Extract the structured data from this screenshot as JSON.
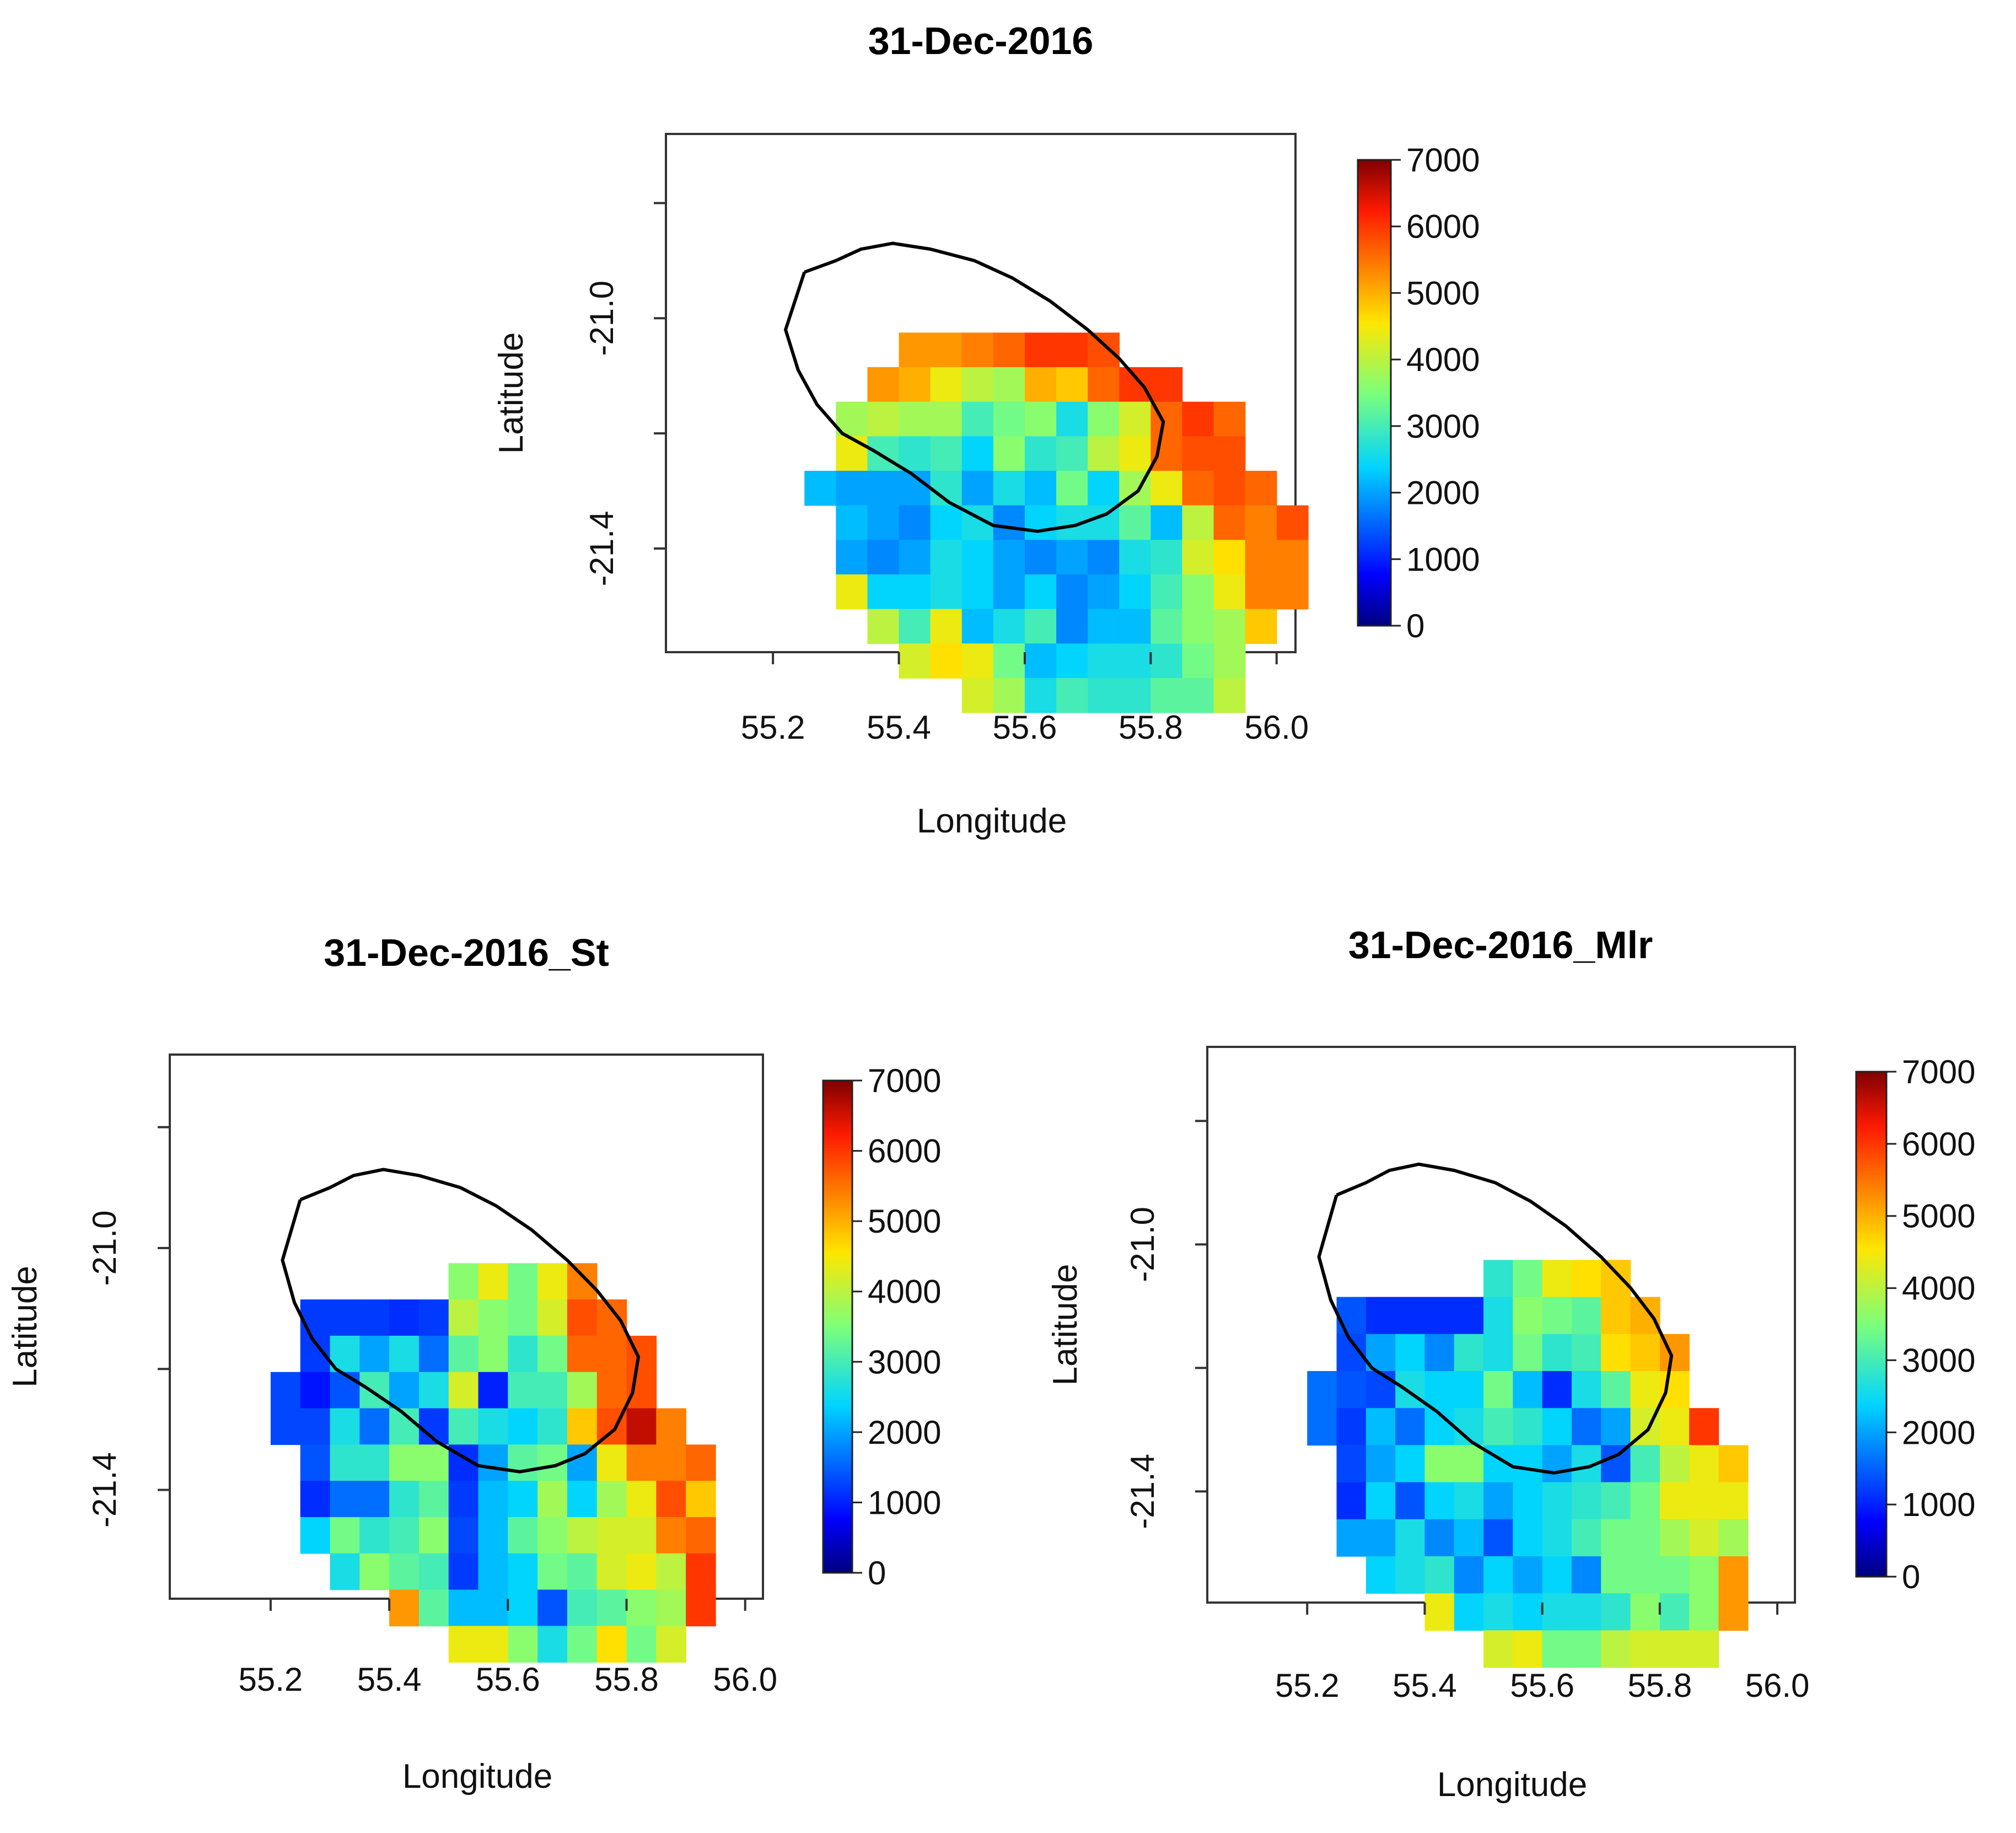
{
  "figure": {
    "description_free": true
  },
  "chart_data": [
    {
      "type": "heatmap",
      "title": "31-Dec-2016",
      "xlabel": "Longitude",
      "ylabel": "Latitude",
      "xlim": [
        55.03,
        56.03
      ],
      "ylim": [
        -21.58,
        -20.68
      ],
      "xticks": [
        "55.2",
        "55.4",
        "55.6",
        "55.8",
        "56.0"
      ],
      "yticks": [
        "-21.0",
        "-21.4"
      ],
      "colorbar": {
        "min": 0,
        "max": 7000,
        "ticks": [
          "0",
          "1000",
          "2000",
          "3000",
          "4000",
          "5000",
          "6000",
          "7000"
        ]
      },
      "grid": {
        "lon0": 55.225,
        "lat0": -20.875,
        "dlon": 0.05,
        "dlat": 0.06,
        "rows": [
          [
            null,
            null,
            null,
            null,
            null,
            null,
            null,
            null,
            null,
            null,
            null,
            null,
            null,
            null,
            null,
            null
          ],
          [
            null,
            null,
            null,
            null,
            null,
            null,
            null,
            null,
            null,
            null,
            null,
            null,
            null,
            null,
            null,
            null
          ],
          [
            null,
            null,
            null,
            null,
            null,
            null,
            null,
            null,
            null,
            null,
            null,
            null,
            null,
            null,
            null,
            null
          ],
          [
            null,
            null,
            null,
            null,
            5200,
            5200,
            5400,
            5600,
            6000,
            6000,
            5800,
            null,
            null,
            null,
            null,
            null
          ],
          [
            null,
            null,
            null,
            5200,
            5000,
            4400,
            4000,
            3800,
            5000,
            4800,
            5600,
            6000,
            6000,
            null,
            null,
            null
          ],
          [
            null,
            null,
            3800,
            4000,
            3800,
            3800,
            3000,
            3400,
            3600,
            2600,
            3600,
            4200,
            5600,
            6000,
            5600,
            null
          ],
          [
            null,
            null,
            4400,
            3000,
            2800,
            3000,
            2400,
            3600,
            2800,
            3000,
            4000,
            4400,
            5600,
            5800,
            5800,
            null
          ],
          [
            null,
            2200,
            2000,
            2000,
            2000,
            2800,
            2000,
            2600,
            2200,
            3400,
            2400,
            3800,
            4400,
            5600,
            5800,
            5600,
            null
          ],
          [
            null,
            null,
            2200,
            2000,
            1800,
            2400,
            2600,
            1800,
            2400,
            2600,
            2600,
            3200,
            2200,
            4000,
            5600,
            5400,
            5800
          ],
          [
            null,
            null,
            2000,
            1800,
            2000,
            2600,
            2400,
            2000,
            1800,
            2000,
            1800,
            2600,
            2800,
            4200,
            4600,
            5400,
            5400
          ],
          [
            null,
            null,
            4400,
            2400,
            2400,
            2600,
            2400,
            2000,
            2400,
            1800,
            2000,
            2400,
            3000,
            3600,
            4400,
            5400,
            5400
          ],
          [
            null,
            null,
            null,
            4000,
            3000,
            4400,
            2200,
            2600,
            3000,
            1800,
            2200,
            2200,
            3200,
            3600,
            3800,
            4800,
            null
          ],
          [
            null,
            null,
            null,
            null,
            4200,
            4600,
            4400,
            3400,
            2200,
            2400,
            2600,
            2600,
            2800,
            3400,
            3800,
            null,
            null
          ],
          [
            null,
            null,
            null,
            null,
            null,
            null,
            4200,
            3800,
            2600,
            3000,
            2800,
            2800,
            3200,
            3200,
            4000,
            null,
            null
          ]
        ]
      }
    },
    {
      "type": "heatmap",
      "title": "31-Dec-2016_St",
      "xlabel": "Longitude",
      "ylabel": "Latitude",
      "xlim": [
        55.03,
        56.03
      ],
      "ylim": [
        -21.58,
        -20.68
      ],
      "xticks": [
        "55.2",
        "55.4",
        "55.6",
        "55.8",
        "56.0"
      ],
      "yticks": [
        "-21.0",
        "-21.4"
      ],
      "colorbar": {
        "min": 0,
        "max": 7000,
        "ticks": [
          "0",
          "1000",
          "2000",
          "3000",
          "4000",
          "5000",
          "6000",
          "7000"
        ]
      },
      "grid": {
        "lon0": 55.225,
        "lat0": -20.875,
        "dlon": 0.05,
        "dlat": 0.06,
        "rows": [
          [
            null,
            null,
            null,
            null,
            null,
            null,
            null,
            null,
            null,
            null,
            null,
            null,
            null,
            null,
            null,
            null
          ],
          [
            null,
            null,
            null,
            null,
            null,
            null,
            null,
            null,
            null,
            null,
            null,
            null,
            null,
            null,
            null,
            null
          ],
          [
            null,
            null,
            null,
            null,
            null,
            null,
            null,
            null,
            null,
            null,
            null,
            null,
            null,
            null,
            null,
            null
          ],
          [
            null,
            null,
            null,
            null,
            null,
            null,
            3600,
            4400,
            3400,
            4400,
            5400,
            null,
            null,
            null,
            null,
            null
          ],
          [
            null,
            1200,
            1200,
            1200,
            1100,
            1200,
            4000,
            3600,
            3400,
            4200,
            5800,
            5600,
            null,
            null,
            null,
            null
          ],
          [
            null,
            1200,
            2600,
            2000,
            2600,
            1600,
            3200,
            3600,
            2800,
            3400,
            5600,
            5600,
            5800,
            null,
            null,
            null
          ],
          [
            1300,
            900,
            1400,
            3000,
            2000,
            2600,
            4200,
            1000,
            3000,
            3000,
            3800,
            5600,
            5800,
            null,
            null,
            null
          ],
          [
            1300,
            1300,
            2600,
            1600,
            3000,
            1200,
            3000,
            2600,
            2400,
            2800,
            4800,
            5800,
            6600,
            5400,
            null,
            null
          ],
          [
            null,
            1400,
            2800,
            2800,
            3600,
            3600,
            1100,
            2000,
            3200,
            3400,
            2000,
            4400,
            5400,
            5400,
            5600,
            null
          ],
          [
            null,
            1100,
            1600,
            1600,
            2800,
            3200,
            1200,
            2200,
            2400,
            3800,
            2400,
            3800,
            4400,
            5800,
            4800,
            null
          ],
          [
            null,
            2400,
            3400,
            2800,
            3000,
            3600,
            1300,
            2200,
            3200,
            3600,
            4000,
            4200,
            4200,
            5400,
            5600,
            null
          ],
          [
            null,
            null,
            2600,
            3600,
            3200,
            3000,
            1200,
            2200,
            2400,
            3400,
            3200,
            4200,
            4400,
            4000,
            6000,
            null
          ],
          [
            null,
            null,
            null,
            null,
            5200,
            3200,
            2200,
            2200,
            2400,
            1400,
            3000,
            3200,
            3600,
            3800,
            6000,
            null
          ],
          [
            null,
            null,
            null,
            null,
            null,
            null,
            4400,
            4400,
            3600,
            2600,
            3400,
            4600,
            3400,
            4200,
            null,
            null
          ]
        ]
      }
    },
    {
      "type": "heatmap",
      "title": "31-Dec-2016_Mlr",
      "xlabel": "Longitude",
      "ylabel": "Latitude",
      "xlim": [
        55.03,
        56.03
      ],
      "ylim": [
        -21.58,
        -20.68
      ],
      "xticks": [
        "55.2",
        "55.4",
        "55.6",
        "55.8",
        "56.0"
      ],
      "yticks": [
        "-21.0",
        "-21.4"
      ],
      "colorbar": {
        "min": 0,
        "max": 7000,
        "ticks": [
          "0",
          "1000",
          "2000",
          "3000",
          "4000",
          "5000",
          "6000",
          "7000"
        ]
      },
      "grid": {
        "lon0": 55.225,
        "lat0": -20.875,
        "dlon": 0.05,
        "dlat": 0.06,
        "rows": [
          [
            null,
            null,
            null,
            null,
            null,
            null,
            null,
            null,
            null,
            null,
            null,
            null,
            null,
            null,
            null,
            null
          ],
          [
            null,
            null,
            null,
            null,
            null,
            null,
            null,
            null,
            null,
            null,
            null,
            null,
            null,
            null,
            null,
            null
          ],
          [
            null,
            null,
            null,
            null,
            null,
            null,
            null,
            null,
            null,
            null,
            null,
            null,
            null,
            null,
            null,
            null
          ],
          [
            null,
            null,
            null,
            null,
            null,
            null,
            2800,
            3400,
            4400,
            4600,
            4800,
            null,
            null,
            null,
            null,
            null
          ],
          [
            null,
            1400,
            1100,
            1100,
            1100,
            1100,
            2600,
            3600,
            3400,
            3200,
            4800,
            5000,
            null,
            null,
            null,
            null
          ],
          [
            null,
            1300,
            2000,
            2400,
            1800,
            2800,
            2600,
            3400,
            2800,
            3000,
            4600,
            4800,
            5200,
            null,
            null,
            null
          ],
          [
            1600,
            1400,
            1300,
            2600,
            2400,
            2400,
            3400,
            2200,
            1100,
            2600,
            3200,
            4400,
            4600,
            null,
            null,
            null
          ],
          [
            1600,
            1200,
            2200,
            1600,
            2400,
            2600,
            3000,
            2800,
            2400,
            1600,
            2000,
            4200,
            4400,
            6000,
            null,
            null
          ],
          [
            null,
            1300,
            2000,
            2400,
            3600,
            3600,
            2400,
            2400,
            2000,
            2600,
            1400,
            3000,
            4000,
            4400,
            4800,
            null
          ],
          [
            null,
            1100,
            2400,
            1400,
            2400,
            2600,
            2000,
            2400,
            2600,
            2800,
            3000,
            3400,
            4400,
            4400,
            4400,
            null
          ],
          [
            null,
            2000,
            2000,
            2600,
            1800,
            2200,
            1400,
            2400,
            2600,
            3000,
            3400,
            3400,
            3800,
            4200,
            3800,
            null
          ],
          [
            null,
            null,
            2400,
            2600,
            2800,
            1800,
            2400,
            2000,
            2400,
            1800,
            3400,
            3400,
            3400,
            3600,
            5200,
            null
          ],
          [
            null,
            null,
            null,
            null,
            4400,
            2400,
            2600,
            2400,
            2600,
            2600,
            2800,
            3600,
            3000,
            3600,
            5200,
            null
          ],
          [
            null,
            null,
            null,
            null,
            null,
            null,
            4200,
            4400,
            3400,
            3400,
            4000,
            4200,
            4200,
            4200,
            null,
            null
          ]
        ]
      }
    }
  ],
  "outline": {
    "lon": [
      55.25,
      55.3,
      55.34,
      55.39,
      55.45,
      55.52,
      55.58,
      55.64,
      55.7,
      55.75,
      55.79,
      55.82,
      55.81,
      55.78,
      55.73,
      55.68,
      55.62,
      55.55,
      55.48,
      55.42,
      55.36,
      55.31,
      55.27,
      55.24,
      55.22,
      55.25
    ],
    "lat": [
      -20.92,
      -20.9,
      -20.88,
      -20.87,
      -20.88,
      -20.9,
      -20.93,
      -20.97,
      -21.02,
      -21.07,
      -21.12,
      -21.18,
      -21.24,
      -21.3,
      -21.34,
      -21.36,
      -21.37,
      -21.36,
      -21.32,
      -21.27,
      -21.23,
      -21.2,
      -21.15,
      -21.09,
      -21.02,
      -20.92
    ]
  }
}
